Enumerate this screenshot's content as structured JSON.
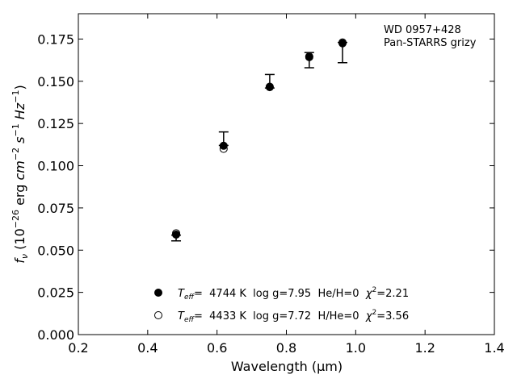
{
  "chart_data": {
    "type": "scatter",
    "xlabel": "Wavelength (μm)",
    "ylabel_parts": {
      "f": "f",
      "nu": "ν",
      "open": " (10",
      "exp26": "−26",
      "erg": " erg ",
      "cm": "cm",
      "exp2": "−2",
      "s": " s",
      "exp1a": "−1",
      "hz": " Hz",
      "exp1b": "−1",
      "close": ")"
    },
    "xlim": [
      0.2,
      1.4
    ],
    "ylim": [
      0.0,
      0.19
    ],
    "xticks": [
      0.2,
      0.4,
      0.6,
      0.8,
      1.0,
      1.2,
      1.4
    ],
    "xtick_labels": [
      "0.2",
      "0.4",
      "0.6",
      "0.8",
      "1.0",
      "1.2",
      "1.4"
    ],
    "yticks": [
      0.0,
      0.025,
      0.05,
      0.075,
      0.1,
      0.125,
      0.15,
      0.175
    ],
    "ytick_labels": [
      "0.000",
      "0.025",
      "0.050",
      "0.075",
      "0.100",
      "0.125",
      "0.150",
      "0.175"
    ],
    "annotation": [
      "WD 0957+428",
      "Pan-STARRS grizy"
    ],
    "observed": {
      "x": [
        0.482,
        0.619,
        0.752,
        0.866,
        0.962
      ],
      "y": [
        0.0572,
        0.1135,
        0.1475,
        0.1625,
        0.1675
      ],
      "yerr_low": [
        0.0017,
        0.0015,
        0.0015,
        0.0045,
        0.0065
      ],
      "yerr_high": [
        0.0017,
        0.0065,
        0.0065,
        0.0045,
        0.0055
      ]
    },
    "series": [
      {
        "legend_parts": {
          "T": "T",
          "eff": "eff",
          "rest": "=  4744 K  log g=7.95  He/H=0  ",
          "chi": "χ",
          "two": "2",
          "val": "=2.21"
        },
        "marker": "filled",
        "x": [
          0.482,
          0.619,
          0.752,
          0.866,
          0.962
        ],
        "y": [
          0.0592,
          0.1118,
          0.1468,
          0.1643,
          0.1725
        ]
      },
      {
        "legend_parts": {
          "T": "T",
          "eff": "eff",
          "rest": "=  4433 K  log g=7.72  H/He=0  ",
          "chi": "χ",
          "two": "2",
          "val": "=3.56"
        },
        "marker": "open",
        "x": [
          0.482,
          0.619,
          0.752,
          0.866,
          0.962
        ],
        "y": [
          0.06,
          0.11,
          0.1465,
          0.1647,
          0.173
        ]
      }
    ],
    "legend_position": "lower-center"
  }
}
